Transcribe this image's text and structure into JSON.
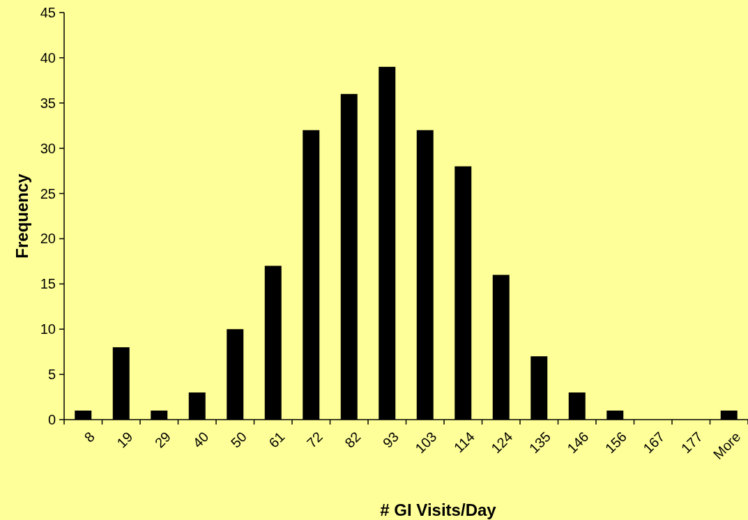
{
  "chart_data": {
    "type": "bar",
    "xlabel": "# GI Visits/Day",
    "ylabel": "Frequency",
    "categories": [
      "8",
      "19",
      "29",
      "40",
      "50",
      "61",
      "72",
      "82",
      "93",
      "103",
      "114",
      "124",
      "135",
      "146",
      "156",
      "167",
      "177",
      "More"
    ],
    "values": [
      1,
      8,
      1,
      3,
      10,
      17,
      32,
      36,
      39,
      32,
      28,
      16,
      7,
      3,
      1,
      0,
      0,
      1
    ],
    "color": "#000000",
    "ylim": [
      0,
      45
    ],
    "yticks": [
      0,
      5,
      10,
      15,
      20,
      25,
      30,
      35,
      40,
      45
    ],
    "grid": false
  }
}
